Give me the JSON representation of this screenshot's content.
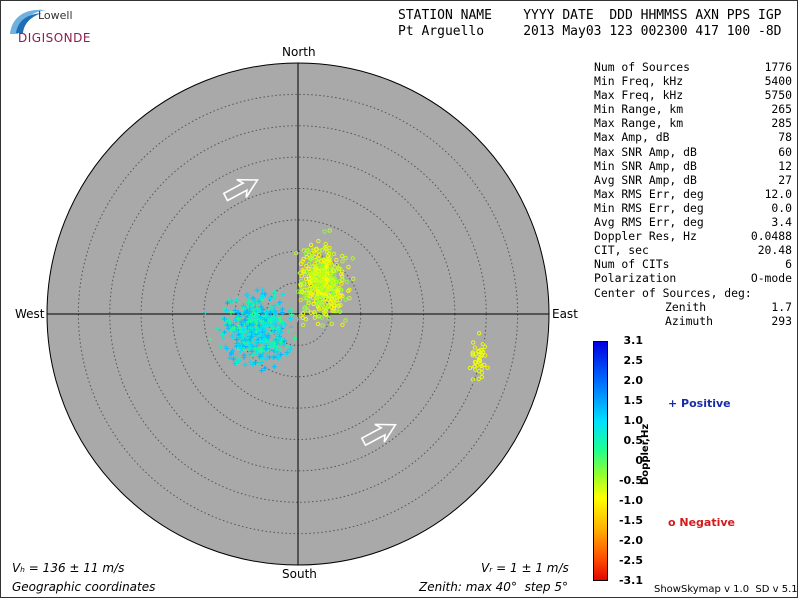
{
  "logo": {
    "top_text": "Lowell",
    "main_text": "DIGISONDE"
  },
  "header": {
    "labels_line": "STATION NAME    YYYY DATE  DDD HHMMSS AXN PPS IGP",
    "values_line": "Pt Arguello     2013 May03 123 002300 417 100 -8D"
  },
  "stats": [
    {
      "label": "Num of Sources",
      "value": "1776"
    },
    {
      "label": "Min Freq, kHz",
      "value": "5400"
    },
    {
      "label": "Max Freq, kHz",
      "value": "5750"
    },
    {
      "label": "Min Range, km",
      "value": "265"
    },
    {
      "label": "Max Range, km",
      "value": "285"
    },
    {
      "label": "Max Amp, dB",
      "value": "78"
    },
    {
      "label": "Max SNR Amp, dB",
      "value": "60"
    },
    {
      "label": "Min SNR Amp, dB",
      "value": "12"
    },
    {
      "label": "Avg SNR Amp, dB",
      "value": "27"
    },
    {
      "label": "Max RMS Err, deg",
      "value": "12.0"
    },
    {
      "label": "Min RMS Err, deg",
      "value": "0.0"
    },
    {
      "label": "Avg RMS Err, deg",
      "value": "3.4"
    },
    {
      "label": "Doppler Res, Hz",
      "value": "0.0488"
    },
    {
      "label": "CIT, sec",
      "value": "20.48"
    },
    {
      "label": "Num of CITs",
      "value": "6"
    },
    {
      "label": "Polarization",
      "value": "O-mode"
    }
  ],
  "center_of_sources": {
    "title": "Center of Sources, deg:",
    "zenith_label": "Zenith",
    "zenith_value": "1.7",
    "azimuth_label": "Azimuth",
    "azimuth_value": "293"
  },
  "compass": {
    "north": "North",
    "south": "South",
    "west": "West",
    "east": "East"
  },
  "footer": {
    "vh": "Vₕ = 136 ± 11 m/s",
    "vz": "Vᵣ = 1 ± 1 m/s",
    "coords": "Geographic coordinates",
    "zenith_info": "Zenith: max 40°  step 5°",
    "version": "ShowSkymap v 1.0  SD v 5.1"
  },
  "colorbar": {
    "title": "Doppler,Hz",
    "ticks": [
      "3.1",
      "2.5",
      "2.0",
      "1.5",
      "1.0",
      "0.5",
      "0",
      "-0.5",
      "-1.0",
      "-1.5",
      "-2.0",
      "-2.5",
      "-3.1"
    ]
  },
  "legend": {
    "positive": "+ Positive",
    "negative": "o Negative"
  },
  "colors": {
    "plot_bg": "#a9a9a9",
    "positive_marker": "+",
    "negative_marker": "o"
  },
  "chart_data": {
    "type": "scatter",
    "projection": "polar skymap",
    "zenith_max_deg": 40,
    "zenith_step_deg": 5,
    "doppler_range_hz": [
      -3.1,
      3.1
    ],
    "center_of_sources": {
      "zenith_deg": 1.7,
      "azimuth_deg": 293
    },
    "clusters": [
      {
        "name": "positive (+) main cluster",
        "marker": "+",
        "doppler_hz": [
          0.2,
          1.5
        ],
        "east_deg": [
          -14,
          1
        ],
        "north_deg": [
          -10,
          5
        ]
      },
      {
        "name": "negative (o) main cluster",
        "marker": "o",
        "doppler_hz": [
          -1.1,
          -0.2
        ],
        "east_deg": [
          -1,
          9
        ],
        "north_deg": [
          -3,
          13
        ]
      },
      {
        "name": "negative (o) east cluster",
        "marker": "o",
        "doppler_hz": [
          -1.0,
          -0.7
        ],
        "east_deg": [
          27,
          31
        ],
        "north_deg": [
          -12,
          -3
        ]
      }
    ],
    "arrows": [
      {
        "direction": "north-east",
        "east_deg": -9,
        "north_deg": 20
      },
      {
        "direction": "north-east",
        "east_deg": 13,
        "north_deg": -19
      }
    ]
  }
}
